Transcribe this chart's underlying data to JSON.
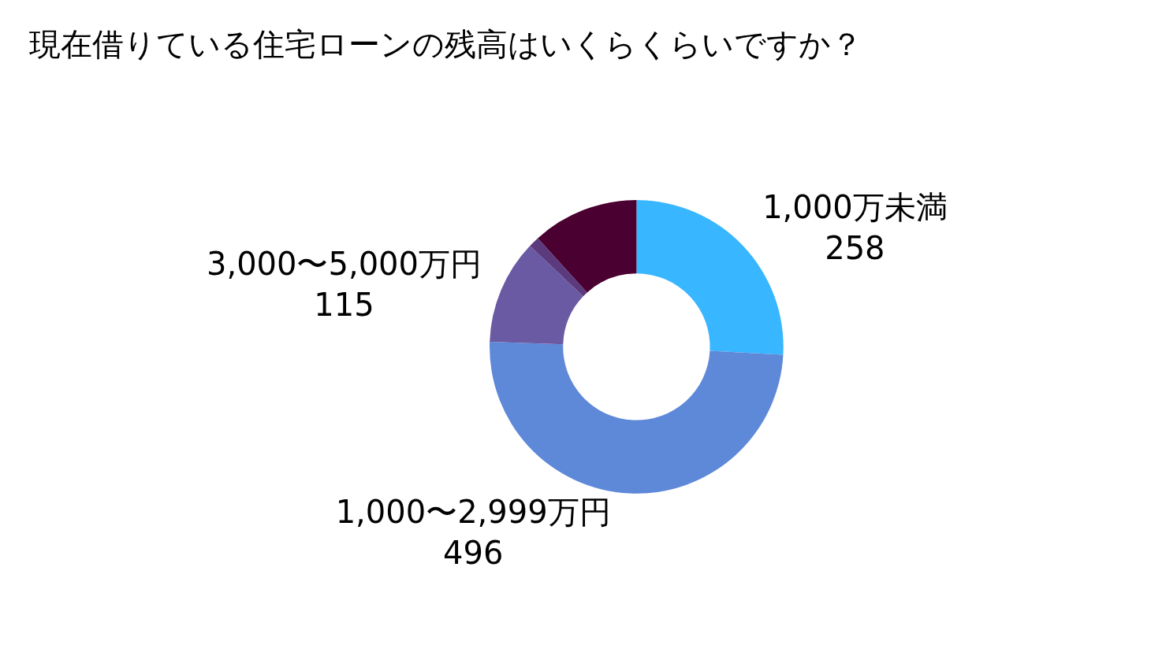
{
  "chart_data": {
    "type": "donut",
    "title": "現在借りている住宅ローンの残高はいくらくらいですか？",
    "categories": [
      "1,000万未満",
      "1,000〜2,999万円",
      "3,000〜5,000万円",
      null,
      null
    ],
    "values": [
      258,
      496,
      115,
      12,
      117
    ],
    "value_labels": [
      "258",
      "496",
      "115",
      null,
      null
    ],
    "colors": [
      "#38b6ff",
      "#5e88d8",
      "#6a5aa3",
      "#5b3a7e",
      "#4a0030"
    ],
    "legend": false
  }
}
